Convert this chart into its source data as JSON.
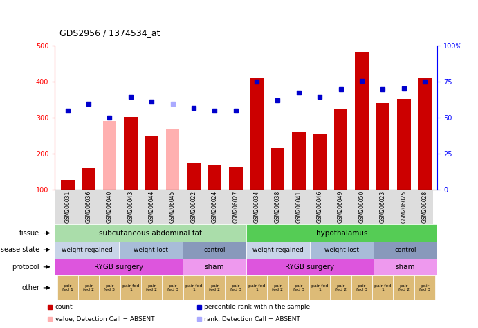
{
  "title": "GDS2956 / 1374534_at",
  "samples": [
    "GSM206031",
    "GSM206036",
    "GSM206040",
    "GSM206043",
    "GSM206044",
    "GSM206045",
    "GSM206022",
    "GSM206024",
    "GSM206027",
    "GSM206034",
    "GSM206038",
    "GSM206041",
    "GSM206046",
    "GSM206049",
    "GSM206050",
    "GSM206023",
    "GSM206025",
    "GSM206028"
  ],
  "bar_values": [
    128,
    160,
    290,
    302,
    248,
    268,
    175,
    170,
    165,
    410,
    215,
    260,
    255,
    325,
    482,
    340,
    352,
    412
  ],
  "bar_colors": [
    "#cc0000",
    "#cc0000",
    "#ffb0b0",
    "#cc0000",
    "#cc0000",
    "#ffb0b0",
    "#cc0000",
    "#cc0000",
    "#cc0000",
    "#cc0000",
    "#cc0000",
    "#cc0000",
    "#cc0000",
    "#cc0000",
    "#cc0000",
    "#cc0000",
    "#cc0000",
    "#cc0000"
  ],
  "dot_values": [
    320,
    338,
    300,
    358,
    345,
    338,
    328,
    320,
    320,
    400,
    348,
    370,
    358,
    378,
    402,
    378,
    380,
    400
  ],
  "dot_colors": [
    "#0000cc",
    "#0000cc",
    "#0000cc",
    "#0000cc",
    "#0000cc",
    "#aaaaff",
    "#0000cc",
    "#0000cc",
    "#0000cc",
    "#0000cc",
    "#0000cc",
    "#0000cc",
    "#0000cc",
    "#0000cc",
    "#0000cc",
    "#0000cc",
    "#0000cc",
    "#0000cc"
  ],
  "ylim_left": [
    100,
    500
  ],
  "ylim_right": [
    0,
    100
  ],
  "yticks_left": [
    100,
    200,
    300,
    400,
    500
  ],
  "yticks_right": [
    0,
    25,
    50,
    75,
    100
  ],
  "ytick_labels_right": [
    "0",
    "25",
    "50",
    "75",
    "100%"
  ],
  "grid_values": [
    200,
    300,
    400
  ],
  "tissue_row": [
    {
      "label": "subcutaneous abdominal fat",
      "start": 0,
      "end": 9,
      "color": "#aaddaa"
    },
    {
      "label": "hypothalamus",
      "start": 9,
      "end": 18,
      "color": "#55cc55"
    }
  ],
  "disease_row": [
    {
      "label": "weight regained",
      "start": 0,
      "end": 3,
      "color": "#c8d4e8"
    },
    {
      "label": "weight lost",
      "start": 3,
      "end": 6,
      "color": "#a8bcd8"
    },
    {
      "label": "control",
      "start": 6,
      "end": 9,
      "color": "#8899bb"
    },
    {
      "label": "weight regained",
      "start": 9,
      "end": 12,
      "color": "#c8d4e8"
    },
    {
      "label": "weight lost",
      "start": 12,
      "end": 15,
      "color": "#a8bcd8"
    },
    {
      "label": "control",
      "start": 15,
      "end": 18,
      "color": "#8899bb"
    }
  ],
  "protocol_row": [
    {
      "label": "RYGB surgery",
      "start": 0,
      "end": 6,
      "color": "#dd55dd"
    },
    {
      "label": "sham",
      "start": 6,
      "end": 9,
      "color": "#ee99ee"
    },
    {
      "label": "RYGB surgery",
      "start": 9,
      "end": 15,
      "color": "#dd55dd"
    },
    {
      "label": "sham",
      "start": 15,
      "end": 18,
      "color": "#ee99ee"
    }
  ],
  "other_labels": [
    "pair\nfed 1",
    "pair\nfed 2",
    "pair\nfed 3",
    "pair fed\n1",
    "pair\nfed 2",
    "pair\nfed 3",
    "pair fed\n1",
    "pair\nfed 2",
    "pair\nfed 3",
    "pair fed\n1",
    "pair\nfed 2",
    "pair\nfed 3",
    "pair fed\n1",
    "pair\nfed 2",
    "pair\nfed 3",
    "pair fed\n1",
    "pair\nfed 2",
    "pair\nfed 3"
  ],
  "other_color": "#ddbb77",
  "row_labels": [
    "tissue",
    "disease state",
    "protocol",
    "other"
  ],
  "legend_items": [
    {
      "color": "#cc0000",
      "label": "count",
      "row": 0,
      "col": 0
    },
    {
      "color": "#0000cc",
      "label": "percentile rank within the sample",
      "row": 0,
      "col": 1
    },
    {
      "color": "#ffb0b0",
      "label": "value, Detection Call = ABSENT",
      "row": 1,
      "col": 0
    },
    {
      "color": "#aaaaff",
      "label": "rank, Detection Call = ABSENT",
      "row": 1,
      "col": 1
    }
  ]
}
